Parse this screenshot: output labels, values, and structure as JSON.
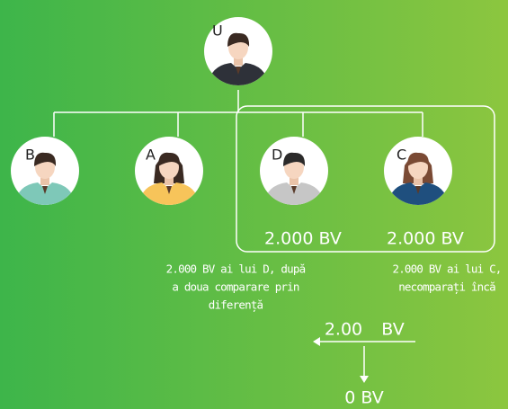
{
  "nodes": [
    {
      "label": "U"
    },
    {
      "label": "B"
    },
    {
      "label": "A"
    },
    {
      "label": "D"
    },
    {
      "label": "C"
    }
  ],
  "volumes": [
    "2.000 BV",
    "2.000 BV"
  ],
  "caption_left": [
    "2.000 BV ai lui D, după",
    "a doua comparare prin",
    "diferență"
  ],
  "caption_right": [
    "2.000 BV ai lui C,",
    "necomparați încă"
  ],
  "flow": {
    "amount": "2.00",
    "unit": "BV",
    "result": "0 BV"
  }
}
